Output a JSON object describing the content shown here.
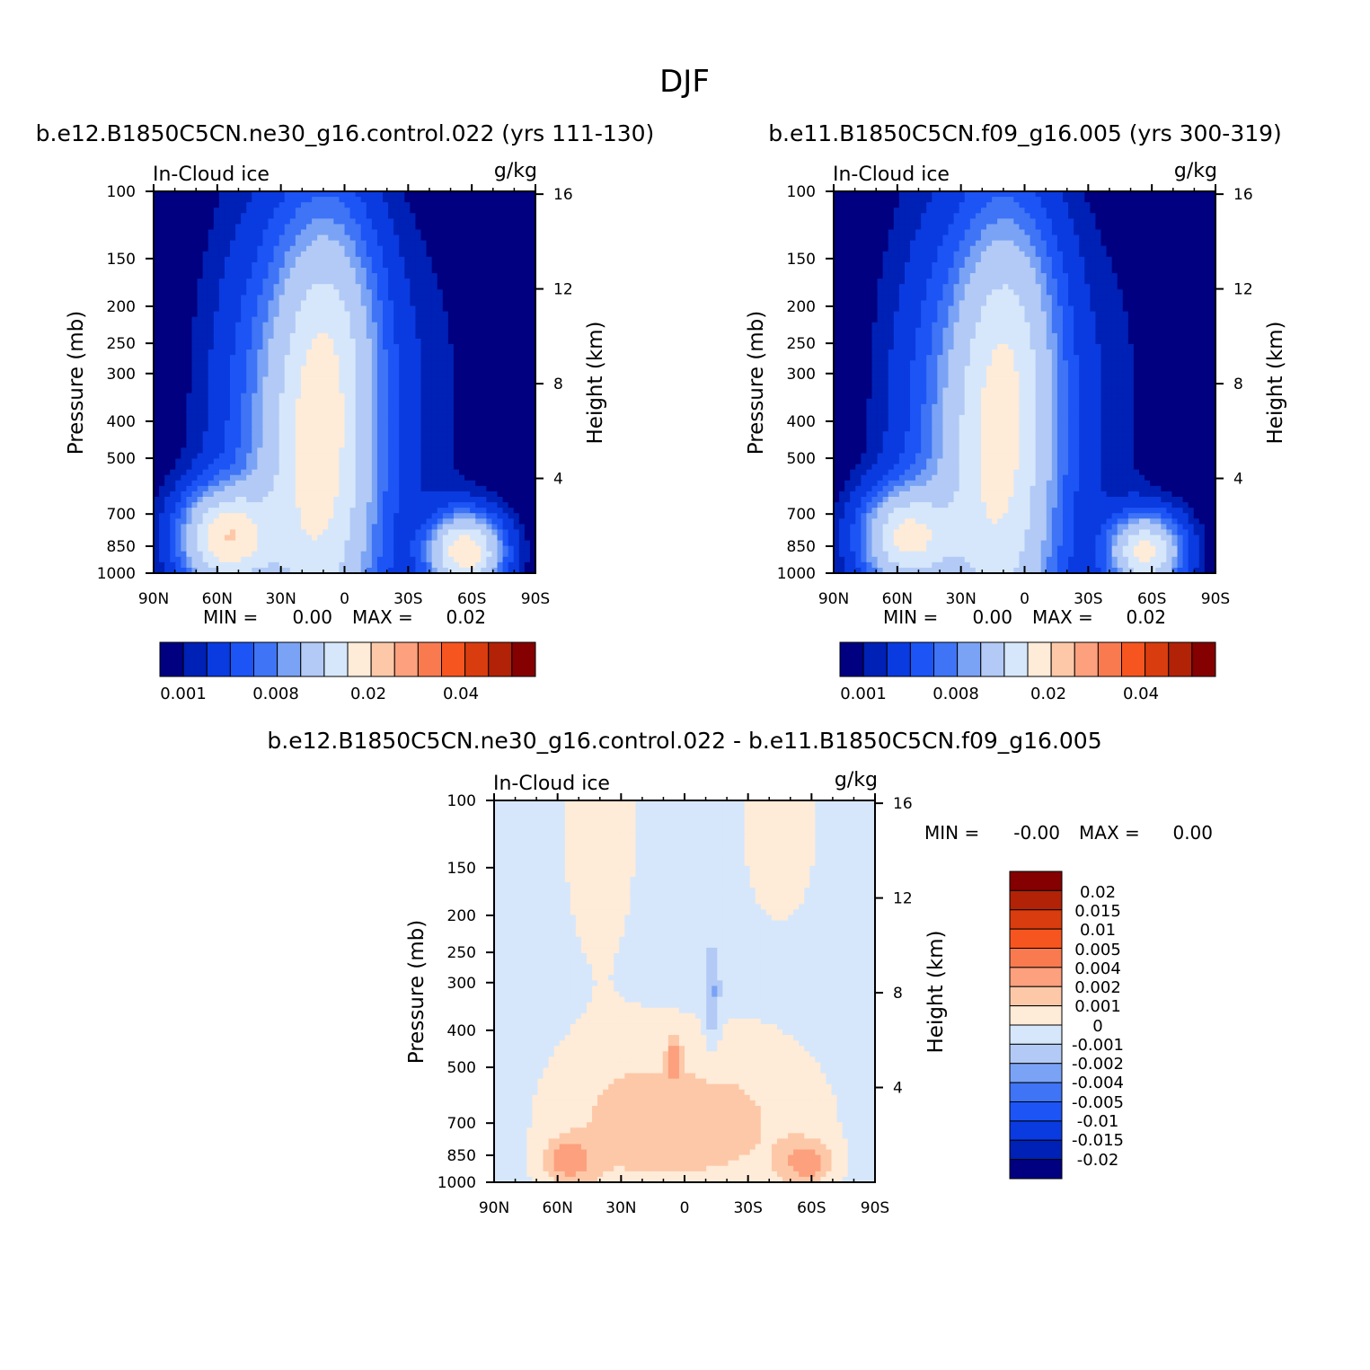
{
  "figure": {
    "title": "DJF",
    "colors": {
      "sequential": [
        "#000080",
        "#0021b5",
        "#0a3be0",
        "#1c54f5",
        "#3e74f5",
        "#7aa3f5",
        "#b2caf5",
        "#d6e7fb",
        "#feebd8",
        "#fdc8a8",
        "#fca07e",
        "#fa7a50",
        "#f75520",
        "#d93c0e",
        "#b22207",
        "#850000"
      ],
      "difference": [
        "#000080",
        "#0021b5",
        "#0a3be0",
        "#1c54f5",
        "#3e74f5",
        "#7aa3f5",
        "#b2caf5",
        "#d6e7fb",
        "#feebd8",
        "#fdc8a8",
        "#fca07e",
        "#fa7a50",
        "#f75520",
        "#d93c0e",
        "#b22207",
        "#850000"
      ]
    }
  },
  "panels": [
    {
      "id": "control",
      "title": "b.e12.B1850C5CN.ne30_g16.control.022 (yrs 111-130)",
      "left_label": "In-Cloud ice",
      "right_label": "g/kg",
      "y_axis_label": "Pressure (mb)",
      "y2_axis_label": "Height (km)",
      "stats": {
        "min_label": "MIN =",
        "min_value": "0.00",
        "max_label": "MAX =",
        "max_value": "0.02"
      },
      "colorbar_labels": [
        "0.001",
        "0.008",
        "0.02",
        "0.04"
      ]
    },
    {
      "id": "reference",
      "title": "b.e11.B1850C5CN.f09_g16.005 (yrs 300-319)",
      "left_label": "In-Cloud ice",
      "right_label": "g/kg",
      "y_axis_label": "Pressure (mb)",
      "y2_axis_label": "Height (km)",
      "stats": {
        "min_label": "MIN =",
        "min_value": "0.00",
        "max_label": "MAX =",
        "max_value": "0.02"
      },
      "colorbar_labels": [
        "0.001",
        "0.008",
        "0.02",
        "0.04"
      ]
    },
    {
      "id": "difference",
      "title": "b.e12.B1850C5CN.ne30_g16.control.022 - b.e11.B1850C5CN.f09_g16.005",
      "left_label": "In-Cloud ice",
      "right_label": "g/kg",
      "y_axis_label": "Pressure (mb)",
      "y2_axis_label": "Height (km)",
      "stats": {
        "min_label": "MIN =",
        "min_value": "-0.00",
        "max_label": "MAX =",
        "max_value": "0.00"
      },
      "colorbar_labels": [
        "0.02",
        "0.015",
        "0.01",
        "0.005",
        "0.004",
        "0.002",
        "0.001",
        "0",
        "-0.001",
        "-0.002",
        "-0.004",
        "-0.005",
        "-0.01",
        "-0.015",
        "-0.02"
      ]
    }
  ],
  "chart_data": [
    {
      "type": "heatmap",
      "panel": "control",
      "x_ticks": [
        "90N",
        "60N",
        "30N",
        "0",
        "30S",
        "60S",
        "90S"
      ],
      "x_range": [
        90,
        -90
      ],
      "y_ticks": [
        100,
        150,
        200,
        250,
        300,
        400,
        500,
        700,
        850,
        1000
      ],
      "y_range": [
        1000,
        100
      ],
      "y_scale": "log",
      "y2_ticks": [
        4,
        8,
        12,
        16
      ],
      "field_blobs": [
        {
          "lat": 12,
          "p": 540,
          "lat_width": 26,
          "logp_width": 0.55,
          "value": 0.021
        },
        {
          "lat": 6,
          "p": 220,
          "lat_width": 22,
          "logp_width": 0.32,
          "value": 0.006
        },
        {
          "lat": 56,
          "p": 810,
          "lat_width": 20,
          "logp_width": 0.12,
          "value": 0.022
        },
        {
          "lat": -57,
          "p": 880,
          "lat_width": 16,
          "logp_width": 0.09,
          "value": 0.024
        },
        {
          "lat": 45,
          "p": 420,
          "lat_width": 24,
          "logp_width": 0.55,
          "value": 0.003
        },
        {
          "lat": -35,
          "p": 380,
          "lat_width": 26,
          "logp_width": 0.5,
          "value": 0.0012
        }
      ]
    },
    {
      "type": "heatmap",
      "panel": "reference",
      "x_ticks": [
        "90N",
        "60N",
        "30N",
        "0",
        "30S",
        "60S",
        "90S"
      ],
      "x_range": [
        90,
        -90
      ],
      "y_ticks": [
        100,
        150,
        200,
        250,
        300,
        400,
        500,
        700,
        850,
        1000
      ],
      "y_range": [
        1000,
        100
      ],
      "y_scale": "log",
      "y2_ticks": [
        4,
        8,
        12,
        16
      ],
      "field_blobs": [
        {
          "lat": 12,
          "p": 540,
          "lat_width": 26,
          "logp_width": 0.55,
          "value": 0.02
        },
        {
          "lat": 6,
          "p": 220,
          "lat_width": 22,
          "logp_width": 0.32,
          "value": 0.006
        },
        {
          "lat": 56,
          "p": 810,
          "lat_width": 20,
          "logp_width": 0.12,
          "value": 0.019
        },
        {
          "lat": -57,
          "p": 880,
          "lat_width": 16,
          "logp_width": 0.09,
          "value": 0.021
        },
        {
          "lat": 45,
          "p": 420,
          "lat_width": 24,
          "logp_width": 0.55,
          "value": 0.003
        },
        {
          "lat": -35,
          "p": 380,
          "lat_width": 26,
          "logp_width": 0.5,
          "value": 0.0012
        }
      ]
    },
    {
      "type": "heatmap",
      "panel": "difference",
      "x_ticks": [
        "90N",
        "60N",
        "30N",
        "0",
        "30S",
        "60S",
        "90S"
      ],
      "x_range": [
        90,
        -90
      ],
      "y_ticks": [
        100,
        150,
        200,
        250,
        300,
        400,
        500,
        700,
        850,
        1000
      ],
      "y_range": [
        1000,
        100
      ],
      "y_scale": "log",
      "y2_ticks": [
        4,
        8,
        12,
        16
      ],
      "background_value": -0.0005,
      "field_blobs": [
        {
          "lat": 30,
          "p": 700,
          "lat_width": 40,
          "logp_width": 0.25,
          "value": 0.0015
        },
        {
          "lat": -25,
          "p": 700,
          "lat_width": 45,
          "logp_width": 0.25,
          "value": 0.0015
        },
        {
          "lat": 55,
          "p": 880,
          "lat_width": 12,
          "logp_width": 0.06,
          "value": 0.0025
        },
        {
          "lat": -58,
          "p": 890,
          "lat_width": 12,
          "logp_width": 0.06,
          "value": 0.0025
        },
        {
          "lat": 5,
          "p": 470,
          "lat_width": 3,
          "logp_width": 0.06,
          "value": 0.0025
        },
        {
          "lat": 40,
          "p": 120,
          "lat_width": 18,
          "logp_width": 0.35,
          "value": 0.0012
        },
        {
          "lat": -45,
          "p": 120,
          "lat_width": 18,
          "logp_width": 0.25,
          "value": 0.0012
        },
        {
          "lat": -13,
          "p": 330,
          "lat_width": 4,
          "logp_width": 0.12,
          "value": -0.002
        }
      ]
    }
  ]
}
